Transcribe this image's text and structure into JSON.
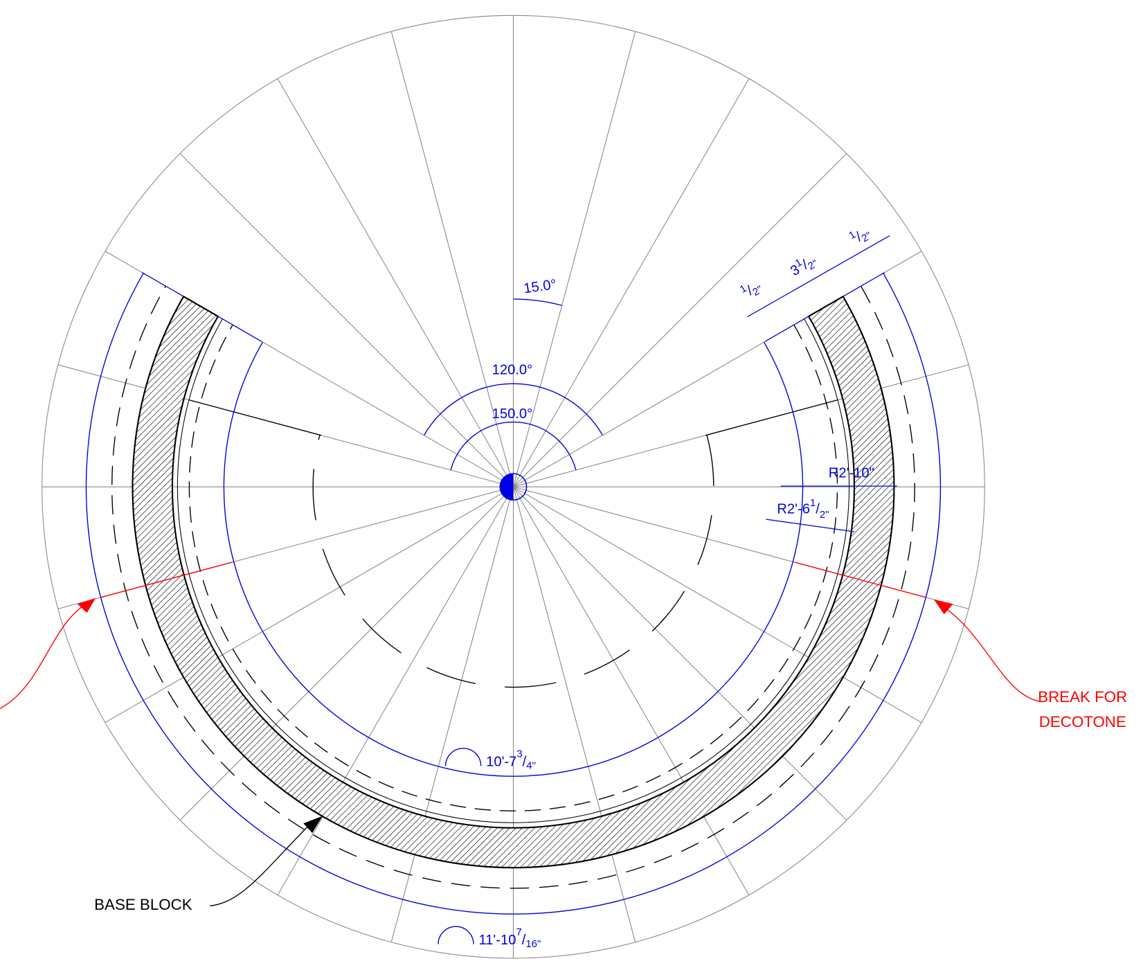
{
  "dimensions": {
    "angle_small": "15.0°",
    "angle_mid": "120.0°",
    "angle_large": "150.0°",
    "radius_outer": "R2'-10\"",
    "radius_inner": {
      "whole": "R2'-6",
      "num": "1",
      "den": "2\""
    },
    "arc_inner": {
      "whole": "10'-7",
      "num": "3",
      "den": "4\""
    },
    "arc_outer": {
      "whole": "11'-10",
      "num": "7",
      "den": "16\""
    },
    "offset_a": {
      "num": "1",
      "den": "2\""
    },
    "offset_b": {
      "whole": "3",
      "num": "1",
      "den": "2\""
    },
    "offset_c": {
      "num": "1",
      "den": "2\""
    }
  },
  "callouts": {
    "base_block": "BASE BLOCK",
    "break_line1": "BREAK FOR",
    "break_line2": "DECOTONE"
  }
}
